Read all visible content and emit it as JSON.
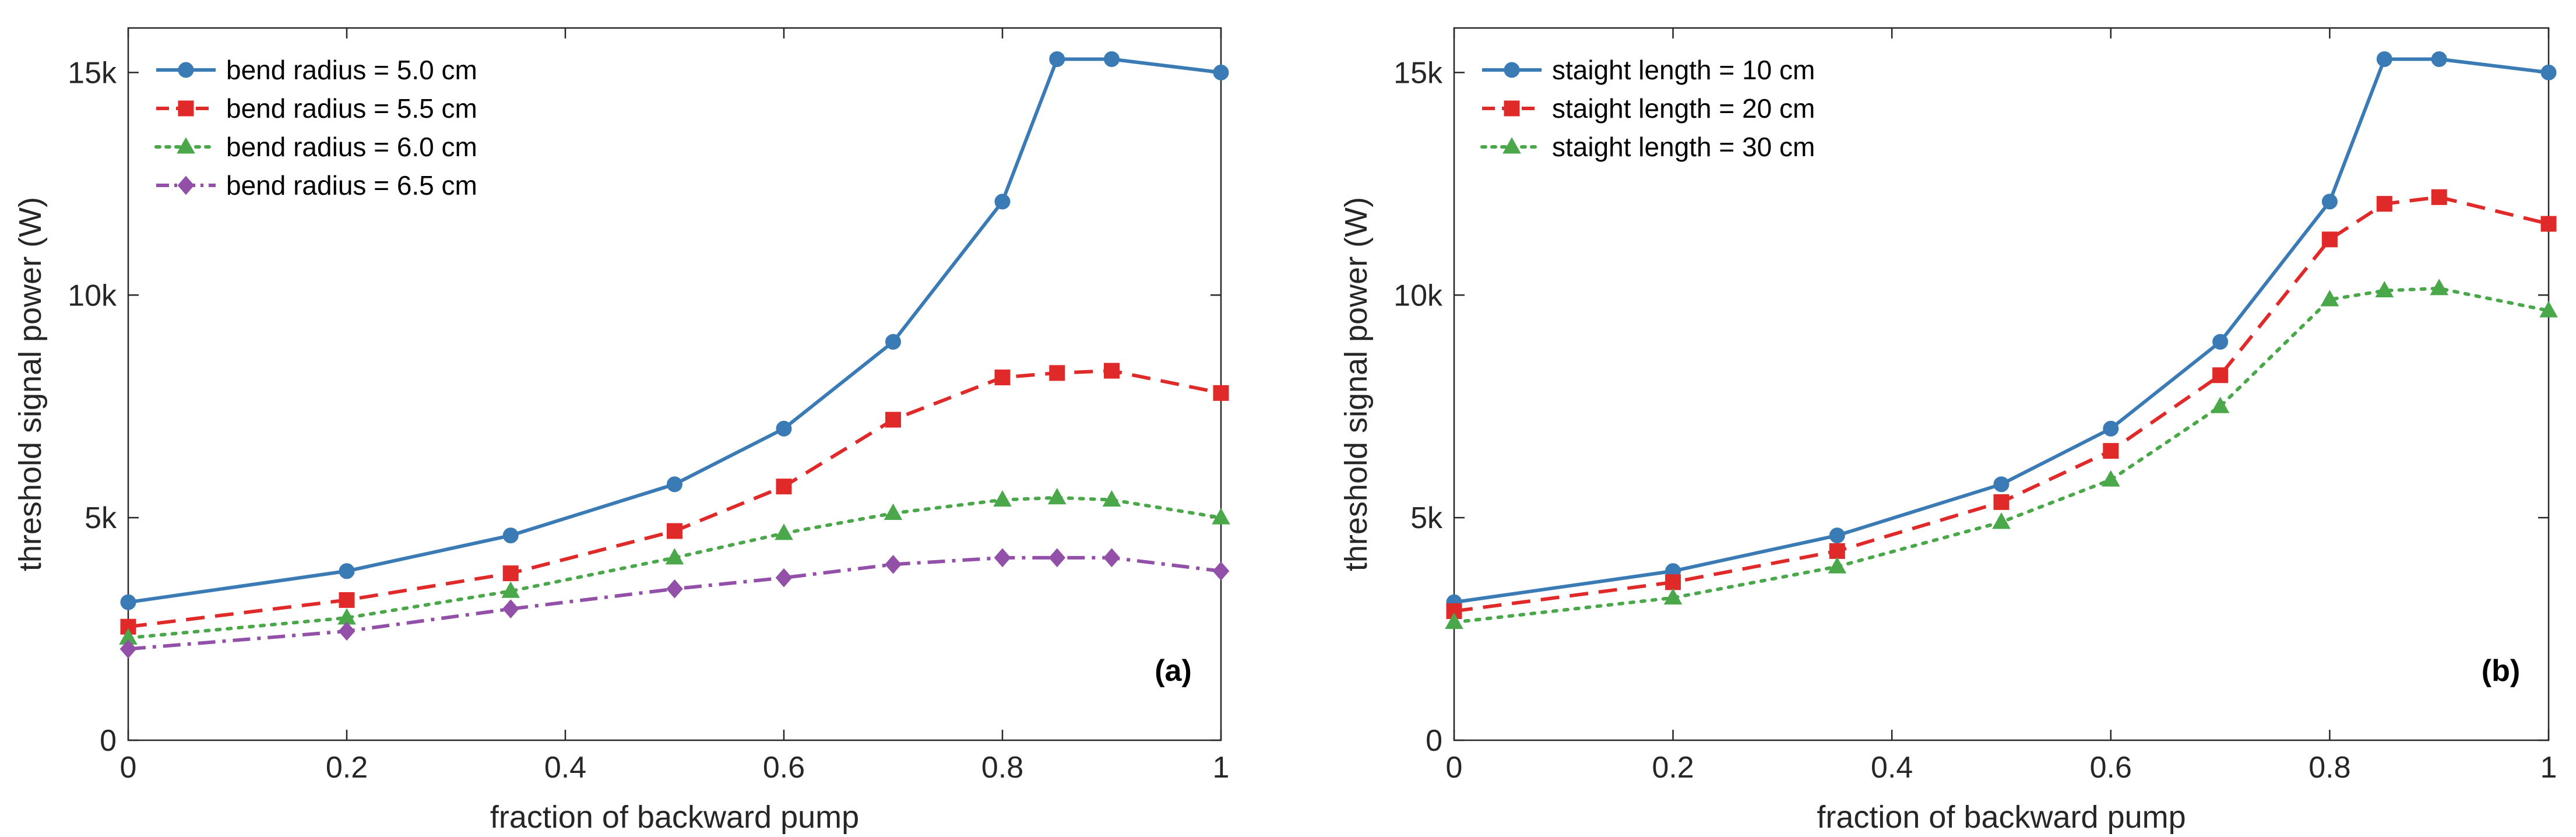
{
  "chart_data": [
    {
      "type": "line",
      "panel_label": "(a)",
      "xlabel": "fraction of backward pump",
      "ylabel": "threshold signal power (W)",
      "xlim": [
        0,
        1
      ],
      "ylim": [
        0,
        16000
      ],
      "xticks": [
        0,
        0.2,
        0.4,
        0.6,
        0.8,
        1
      ],
      "xtick_labels": [
        "0",
        "0.2",
        "0.4",
        "0.6",
        "0.8",
        "1"
      ],
      "yticks": [
        0,
        5000,
        10000,
        15000
      ],
      "ytick_labels": [
        "0",
        "5k",
        "10k",
        "15k"
      ],
      "grid": false,
      "legend_position": "top-left",
      "x": [
        0,
        0.2,
        0.35,
        0.5,
        0.6,
        0.7,
        0.8,
        0.85,
        0.9,
        1
      ],
      "series": [
        {
          "name": "bend radius = 5.0 cm",
          "color": "#3a7ab5",
          "dash": "solid",
          "marker": "circle",
          "values": [
            3100,
            3800,
            4600,
            5750,
            7000,
            8950,
            12100,
            15300,
            15300,
            15000
          ]
        },
        {
          "name": "bend radius = 5.5 cm",
          "color": "#e02a2a",
          "dash": "dashed",
          "marker": "square",
          "values": [
            2550,
            3150,
            3750,
            4700,
            5700,
            7200,
            8150,
            8250,
            8300,
            7800
          ]
        },
        {
          "name": "bend radius = 6.0 cm",
          "color": "#4aa84a",
          "dash": "dotted",
          "marker": "triangle",
          "values": [
            2300,
            2750,
            3350,
            4100,
            4650,
            5100,
            5400,
            5450,
            5400,
            5000
          ]
        },
        {
          "name": "bend radius = 6.5 cm",
          "color": "#9250a8",
          "dash": "dashdot",
          "marker": "diamond",
          "values": [
            2050,
            2450,
            2950,
            3400,
            3650,
            3950,
            4100,
            4100,
            4100,
            3800
          ]
        }
      ]
    },
    {
      "type": "line",
      "panel_label": "(b)",
      "xlabel": "fraction of backward pump",
      "ylabel": "threshold signal power (W)",
      "xlim": [
        0,
        1
      ],
      "ylim": [
        0,
        16000
      ],
      "xticks": [
        0,
        0.2,
        0.4,
        0.6,
        0.8,
        1
      ],
      "xtick_labels": [
        "0",
        "0.2",
        "0.4",
        "0.6",
        "0.8",
        "1"
      ],
      "yticks": [
        0,
        5000,
        10000,
        15000
      ],
      "ytick_labels": [
        "0",
        "5k",
        "10k",
        "15k"
      ],
      "grid": false,
      "legend_position": "top-left",
      "x": [
        0,
        0.2,
        0.35,
        0.5,
        0.6,
        0.7,
        0.8,
        0.85,
        0.9,
        1
      ],
      "series": [
        {
          "name": "staight length = 10 cm",
          "color": "#3a7ab5",
          "dash": "solid",
          "marker": "circle",
          "values": [
            3100,
            3800,
            4600,
            5750,
            7000,
            8950,
            12100,
            15300,
            15300,
            15000
          ]
        },
        {
          "name": "staight length = 20 cm",
          "color": "#e02a2a",
          "dash": "dashed",
          "marker": "square",
          "values": [
            2900,
            3550,
            4250,
            5350,
            6500,
            8200,
            11250,
            12050,
            12200,
            11600
          ]
        },
        {
          "name": "staight length = 30 cm",
          "color": "#4aa84a",
          "dash": "dotted",
          "marker": "triangle",
          "values": [
            2650,
            3200,
            3900,
            4900,
            5850,
            7500,
            9900,
            10100,
            10150,
            9650
          ]
        }
      ]
    }
  ]
}
